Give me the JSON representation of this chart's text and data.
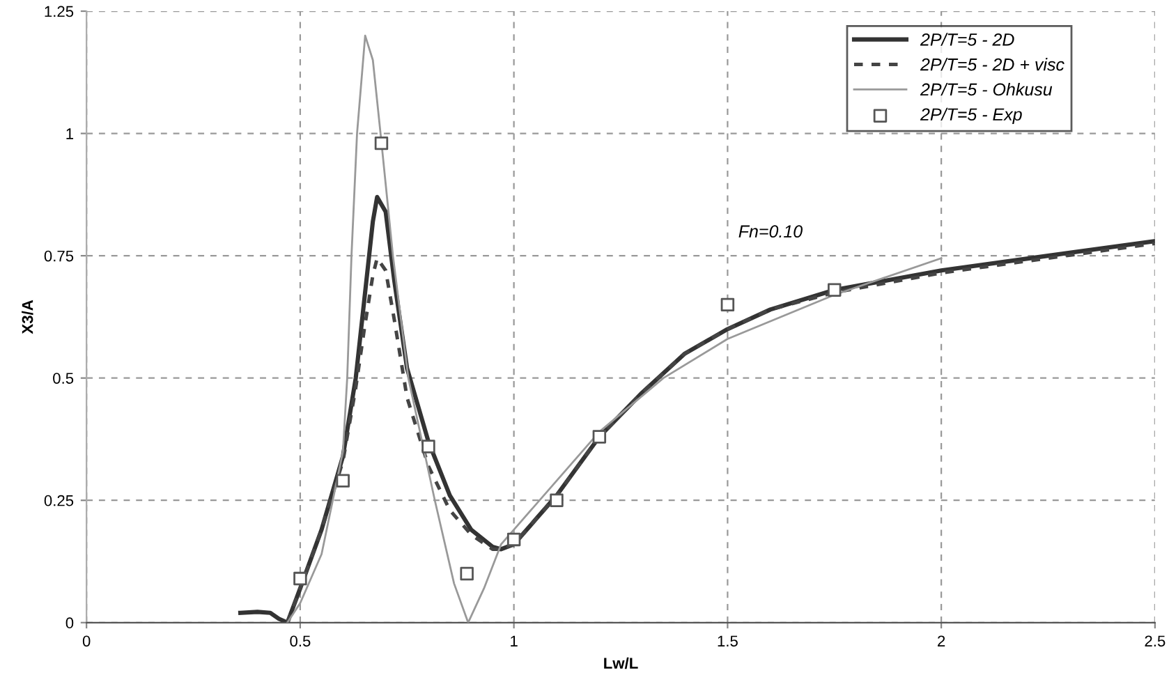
{
  "chart_data": {
    "type": "line",
    "xlabel": "Lw/L",
    "ylabel": "X3/A",
    "xlim": [
      0,
      2.5
    ],
    "ylim": [
      0,
      1.25
    ],
    "xticks": [
      0,
      0.5,
      1,
      1.5,
      2,
      2.5
    ],
    "yticks": [
      0,
      0.25,
      0.5,
      0.75,
      1,
      1.25
    ],
    "grid": true,
    "legend": "top right",
    "annotations": [
      "Fn=0.10"
    ],
    "series": [
      {
        "name": "2P/T=5 - 2D",
        "color": "#333333",
        "line_style": "solid",
        "x": [
          0.36,
          0.4,
          0.43,
          0.45,
          0.47,
          0.5,
          0.55,
          0.6,
          0.63,
          0.65,
          0.67,
          0.68,
          0.7,
          0.72,
          0.75,
          0.8,
          0.85,
          0.9,
          0.95,
          0.97,
          1.0,
          1.05,
          1.1,
          1.2,
          1.3,
          1.4,
          1.5,
          1.6,
          1.75,
          2.0,
          2.25,
          2.5
        ],
        "values": [
          0.02,
          0.022,
          0.02,
          0.008,
          0.0,
          0.07,
          0.19,
          0.34,
          0.5,
          0.66,
          0.82,
          0.87,
          0.84,
          0.7,
          0.52,
          0.37,
          0.26,
          0.19,
          0.155,
          0.15,
          0.16,
          0.21,
          0.26,
          0.38,
          0.47,
          0.55,
          0.6,
          0.64,
          0.68,
          0.72,
          0.75,
          0.78
        ]
      },
      {
        "name": "2P/T=5 - 2D + visc",
        "color": "#444444",
        "line_style": "dashed",
        "x": [
          0.47,
          0.5,
          0.55,
          0.6,
          0.63,
          0.65,
          0.67,
          0.68,
          0.7,
          0.72,
          0.75,
          0.8,
          0.85,
          0.9,
          0.95,
          0.97,
          1.0,
          1.05,
          1.1,
          1.2,
          1.3,
          1.4,
          1.5,
          1.6,
          1.75,
          2.0,
          2.25,
          2.5
        ],
        "values": [
          0,
          0.07,
          0.19,
          0.33,
          0.48,
          0.6,
          0.71,
          0.745,
          0.72,
          0.62,
          0.46,
          0.32,
          0.23,
          0.18,
          0.15,
          0.15,
          0.16,
          0.21,
          0.26,
          0.38,
          0.47,
          0.55,
          0.6,
          0.64,
          0.675,
          0.715,
          0.745,
          0.775
        ]
      },
      {
        "name": "2P/T=5 - Ohkusu",
        "color": "#999999",
        "line_style": "solid",
        "x": [
          0.47,
          0.5,
          0.55,
          0.6,
          0.61,
          0.62,
          0.633,
          0.652,
          0.67,
          0.688,
          0.717,
          0.753,
          0.815,
          0.86,
          0.893,
          0.93,
          0.97,
          1.0,
          1.1,
          1.2,
          1.35,
          1.5,
          1.75,
          2.0
        ],
        "values": [
          0.0,
          0.04,
          0.14,
          0.35,
          0.5,
          0.75,
          1.0,
          1.2,
          1.15,
          1.0,
          0.75,
          0.5,
          0.25,
          0.08,
          0.0,
          0.07,
          0.16,
          0.19,
          0.29,
          0.39,
          0.5,
          0.58,
          0.67,
          0.745
        ]
      },
      {
        "name": "2P/T=5 - Exp",
        "type": "scatter",
        "marker": "square",
        "color": "#555555",
        "x": [
          0.5,
          0.6,
          0.69,
          0.8,
          0.89,
          1.0,
          1.1,
          1.2,
          1.5,
          1.75
        ],
        "values": [
          0.09,
          0.29,
          0.98,
          0.36,
          0.1,
          0.17,
          0.25,
          0.38,
          0.65,
          0.68
        ]
      }
    ]
  }
}
